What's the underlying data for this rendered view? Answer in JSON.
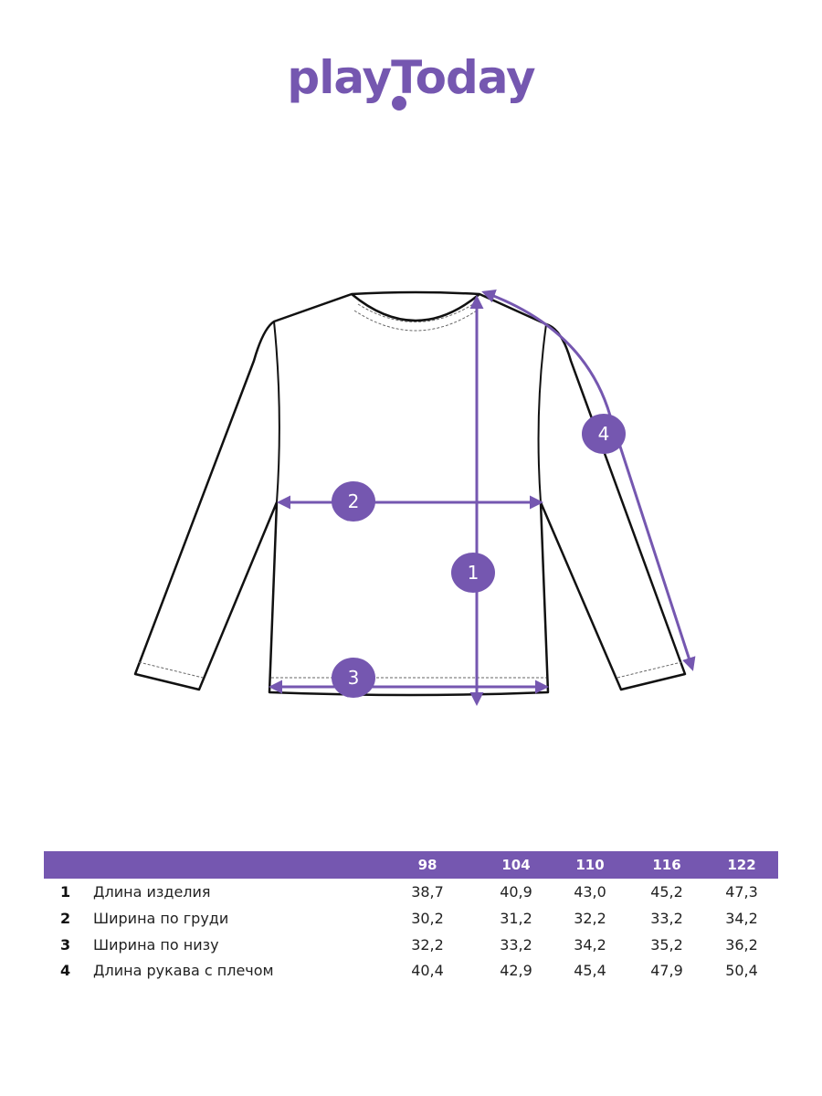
{
  "brand": {
    "logo_text": "playToday",
    "color": "#7557b0"
  },
  "markers": [
    "1",
    "2",
    "3",
    "4"
  ],
  "table": {
    "sizes": [
      "98",
      "104",
      "110",
      "116",
      "122"
    ],
    "rows": [
      {
        "num": "1",
        "label": "Длина изделия",
        "values": [
          "38,7",
          "40,9",
          "43,0",
          "45,2",
          "47,3"
        ]
      },
      {
        "num": "2",
        "label": "Ширина по груди",
        "values": [
          "30,2",
          "31,2",
          "32,2",
          "33,2",
          "34,2"
        ]
      },
      {
        "num": "3",
        "label": "Ширина по низу",
        "values": [
          "32,2",
          "33,2",
          "34,2",
          "35,2",
          "36,2"
        ]
      },
      {
        "num": "4",
        "label": "Длина рукава с плечом",
        "values": [
          "40,4",
          "42,9",
          "45,4",
          "47,9",
          "50,4"
        ]
      }
    ]
  }
}
